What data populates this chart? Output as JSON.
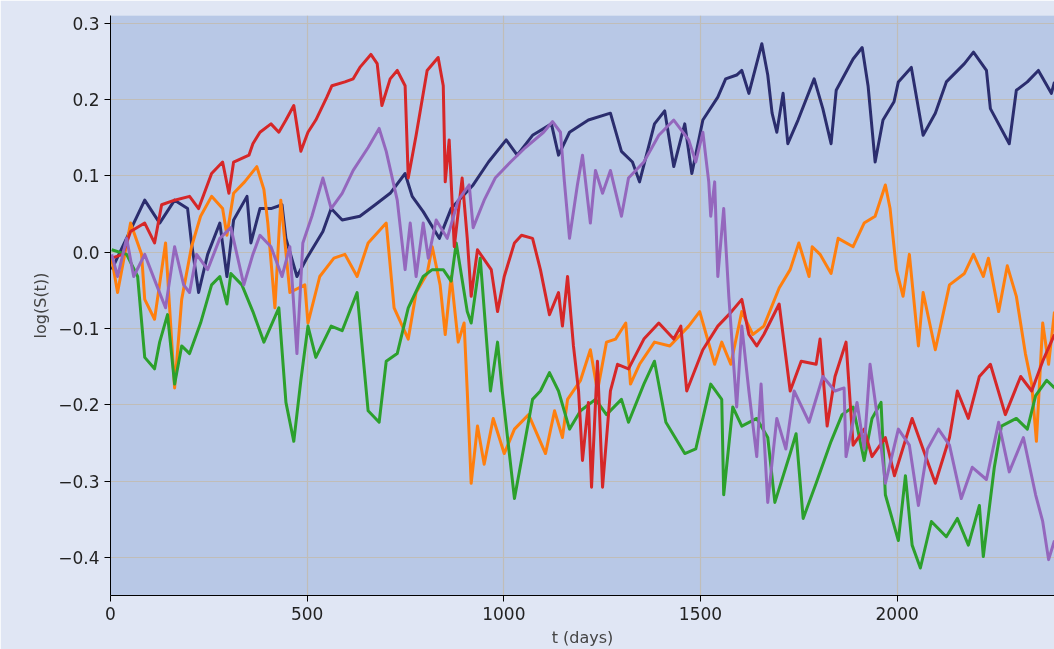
{
  "chart_data": {
    "type": "line",
    "xlabel": "t (days)",
    "ylabel": "log(S(t))",
    "xlim": [
      0,
      2400
    ],
    "ylim": [
      -0.45,
      0.31
    ],
    "xticks": [
      0,
      500,
      1000,
      1500,
      2000
    ],
    "yticks": [
      {
        "value": -0.4,
        "label": "−0.4"
      },
      {
        "value": -0.3,
        "label": "−0.3"
      },
      {
        "value": -0.2,
        "label": "−0.2"
      },
      {
        "value": -0.1,
        "label": "−0.1"
      },
      {
        "value": 0,
        "label": "0.0"
      },
      0.1,
      0.2,
      0.3
    ],
    "grid": true,
    "line_style": "solid",
    "marker": "none",
    "series": [
      {
        "color": "#2b2d6e",
        "x": [
          3,
          87,
          125,
          163,
          196,
          206,
          224,
          247,
          278,
          296,
          313,
          347,
          357,
          380,
          408,
          436,
          446,
          474,
          499,
          540,
          561,
          589,
          634,
          673,
          711,
          749,
          767,
          795,
          836,
          866,
          922,
          961,
          1006,
          1034,
          1073,
          1121,
          1139,
          1167,
          1215,
          1271,
          1299,
          1327,
          1345,
          1383,
          1409,
          1432,
          1460,
          1478,
          1506,
          1544,
          1564,
          1592,
          1605,
          1623,
          1656,
          1671,
          1682,
          1694,
          1710,
          1722,
          1748,
          1789,
          1811,
          1832,
          1845,
          1888,
          1911,
          1926,
          1944,
          1964,
          1992,
          2003,
          2036,
          2066,
          2097,
          2125,
          2171,
          2194,
          2227,
          2237,
          2285,
          2303,
          2331,
          2359,
          2392,
          2400
        ],
        "values": [
          -0.023,
          0.068,
          0.038,
          0.068,
          0.057,
          0.012,
          -0.053,
          -0.003,
          0.038,
          -0.032,
          0.042,
          0.073,
          0.012,
          0.057,
          0.057,
          0.062,
          0.018,
          -0.032,
          -0.008,
          0.027,
          0.057,
          0.042,
          0.047,
          0.062,
          0.077,
          0.103,
          0.073,
          0.053,
          0.018,
          0.057,
          0.088,
          0.118,
          0.147,
          0.127,
          0.153,
          0.168,
          0.127,
          0.157,
          0.173,
          0.182,
          0.132,
          0.118,
          0.092,
          0.168,
          0.185,
          0.112,
          0.168,
          0.103,
          0.173,
          0.203,
          0.227,
          0.232,
          0.238,
          0.208,
          0.273,
          0.232,
          0.182,
          0.157,
          0.208,
          0.142,
          0.173,
          0.227,
          0.188,
          0.142,
          0.212,
          0.253,
          0.268,
          0.218,
          0.118,
          0.173,
          0.197,
          0.223,
          0.242,
          0.153,
          0.182,
          0.223,
          0.247,
          0.262,
          0.238,
          0.188,
          0.142,
          0.212,
          0.223,
          0.238,
          0.208,
          0.223
        ]
      },
      {
        "color": "#ff7f0e",
        "x": [
          3,
          18,
          51,
          79,
          87,
          112,
          140,
          163,
          181,
          206,
          229,
          257,
          285,
          296,
          313,
          341,
          372,
          390,
          400,
          418,
          433,
          456,
          494,
          502,
          532,
          568,
          596,
          627,
          655,
          701,
          721,
          757,
          777,
          805,
          818,
          838,
          851,
          866,
          884,
          899,
          907,
          917,
          933,
          950,
          973,
          1001,
          1027,
          1063,
          1106,
          1129,
          1149,
          1162,
          1195,
          1220,
          1238,
          1261,
          1284,
          1310,
          1322,
          1345,
          1383,
          1422,
          1470,
          1498,
          1536,
          1554,
          1577,
          1605,
          1633,
          1661,
          1700,
          1728,
          1750,
          1776,
          1784,
          1804,
          1832,
          1850,
          1888,
          1916,
          1944,
          1970,
          1982,
          1998,
          2015,
          2031,
          2054,
          2066,
          2097,
          2133,
          2171,
          2194,
          2219,
          2232,
          2258,
          2280,
          2303,
          2326,
          2342,
          2354,
          2370,
          2385,
          2400
        ],
        "values": [
          -0.008,
          -0.053,
          0.038,
          -0.003,
          -0.062,
          -0.088,
          0.012,
          -0.178,
          -0.062,
          0.007,
          0.047,
          0.073,
          0.057,
          0.022,
          0.077,
          0.092,
          0.112,
          0.082,
          0.038,
          -0.073,
          0.068,
          -0.053,
          -0.043,
          -0.093,
          -0.032,
          -0.008,
          -0.003,
          -0.032,
          0.012,
          0.038,
          -0.073,
          -0.114,
          -0.053,
          -0.028,
          0.007,
          -0.043,
          -0.108,
          -0.032,
          -0.118,
          -0.093,
          -0.182,
          -0.303,
          -0.228,
          -0.278,
          -0.218,
          -0.264,
          -0.232,
          -0.213,
          -0.264,
          -0.208,
          -0.243,
          -0.193,
          -0.168,
          -0.128,
          -0.182,
          -0.118,
          -0.114,
          -0.093,
          -0.173,
          -0.147,
          -0.118,
          -0.123,
          -0.097,
          -0.078,
          -0.147,
          -0.118,
          -0.147,
          -0.078,
          -0.108,
          -0.097,
          -0.047,
          -0.023,
          0.012,
          -0.032,
          0.007,
          -0.003,
          -0.028,
          0.018,
          0.007,
          0.038,
          0.047,
          0.088,
          0.057,
          -0.023,
          -0.058,
          -0.003,
          -0.123,
          -0.053,
          -0.128,
          -0.043,
          -0.028,
          -0.003,
          -0.032,
          -0.008,
          -0.078,
          -0.018,
          -0.058,
          -0.133,
          -0.173,
          -0.248,
          -0.093,
          -0.147,
          -0.078
        ]
      },
      {
        "color": "#2ca02c",
        "x": [
          3,
          41,
          69,
          87,
          112,
          125,
          145,
          163,
          181,
          201,
          229,
          257,
          278,
          296,
          306,
          334,
          362,
          390,
          428,
          446,
          466,
          484,
          502,
          522,
          561,
          589,
          627,
          655,
          683,
          701,
          729,
          757,
          795,
          818,
          846,
          866,
          879,
          907,
          917,
          940,
          966,
          984,
          996,
          1027,
          1050,
          1073,
          1093,
          1116,
          1139,
          1167,
          1195,
          1233,
          1261,
          1299,
          1317,
          1356,
          1383,
          1412,
          1460,
          1488,
          1526,
          1554,
          1559,
          1582,
          1605,
          1643,
          1671,
          1689,
          1728,
          1743,
          1761,
          1794,
          1832,
          1860,
          1888,
          1916,
          1936,
          1959,
          1970,
          2003,
          2021,
          2038,
          2059,
          2087,
          2125,
          2153,
          2181,
          2209,
          2219,
          2247,
          2265,
          2303,
          2331,
          2352,
          2380,
          2400
        ],
        "values": [
          0.003,
          -0.003,
          -0.032,
          -0.138,
          -0.153,
          -0.118,
          -0.082,
          -0.173,
          -0.123,
          -0.133,
          -0.093,
          -0.043,
          -0.032,
          -0.068,
          -0.028,
          -0.043,
          -0.078,
          -0.118,
          -0.073,
          -0.197,
          -0.248,
          -0.168,
          -0.097,
          -0.138,
          -0.097,
          -0.103,
          -0.053,
          -0.208,
          -0.223,
          -0.143,
          -0.133,
          -0.073,
          -0.032,
          -0.023,
          -0.023,
          -0.038,
          0.012,
          -0.078,
          -0.093,
          -0.008,
          -0.182,
          -0.118,
          -0.182,
          -0.323,
          -0.258,
          -0.193,
          -0.182,
          -0.158,
          -0.182,
          -0.232,
          -0.208,
          -0.193,
          -0.213,
          -0.193,
          -0.223,
          -0.173,
          -0.143,
          -0.223,
          -0.264,
          -0.258,
          -0.173,
          -0.193,
          -0.318,
          -0.203,
          -0.228,
          -0.218,
          -0.243,
          -0.328,
          -0.264,
          -0.238,
          -0.349,
          -0.303,
          -0.248,
          -0.213,
          -0.203,
          -0.273,
          -0.218,
          -0.197,
          -0.318,
          -0.378,
          -0.293,
          -0.384,
          -0.414,
          -0.353,
          -0.373,
          -0.349,
          -0.384,
          -0.332,
          -0.399,
          -0.282,
          -0.228,
          -0.218,
          -0.232,
          -0.188,
          -0.168,
          -0.178
        ]
      },
      {
        "color": "#d62728",
        "x": [
          3,
          31,
          51,
          87,
          112,
          130,
          163,
          201,
          224,
          257,
          285,
          301,
          313,
          352,
          362,
          380,
          408,
          428,
          446,
          466,
          484,
          502,
          522,
          550,
          563,
          596,
          617,
          634,
          662,
          678,
          690,
          711,
          729,
          749,
          757,
          777,
          805,
          833,
          846,
          851,
          861,
          874,
          894,
          907,
          917,
          933,
          968,
          984,
          1001,
          1027,
          1045,
          1073,
          1093,
          1116,
          1139,
          1149,
          1162,
          1177,
          1190,
          1200,
          1215,
          1223,
          1238,
          1251,
          1271,
          1289,
          1317,
          1356,
          1394,
          1432,
          1450,
          1465,
          1506,
          1544,
          1572,
          1605,
          1623,
          1643,
          1661,
          1700,
          1728,
          1756,
          1794,
          1804,
          1822,
          1842,
          1870,
          1888,
          1916,
          1936,
          1970,
          1993,
          2038,
          2097,
          2133,
          2153,
          2181,
          2209,
          2237,
          2275,
          2314,
          2342,
          2370,
          2400
        ],
        "values": [
          -0.008,
          -0.003,
          0.027,
          0.038,
          0.012,
          0.062,
          0.068,
          0.073,
          0.057,
          0.103,
          0.118,
          0.077,
          0.118,
          0.127,
          0.142,
          0.157,
          0.168,
          0.157,
          0.173,
          0.192,
          0.132,
          0.157,
          0.173,
          0.203,
          0.218,
          0.223,
          0.227,
          0.242,
          0.259,
          0.247,
          0.192,
          0.227,
          0.238,
          0.218,
          0.097,
          0.153,
          0.238,
          0.255,
          0.218,
          0.092,
          0.147,
          0.007,
          0.097,
          0.018,
          -0.058,
          0.003,
          -0.023,
          -0.078,
          -0.032,
          0.012,
          0.022,
          0.018,
          -0.023,
          -0.082,
          -0.053,
          -0.097,
          -0.032,
          -0.123,
          -0.182,
          -0.273,
          -0.197,
          -0.308,
          -0.143,
          -0.308,
          -0.182,
          -0.147,
          -0.153,
          -0.114,
          -0.093,
          -0.114,
          -0.097,
          -0.182,
          -0.128,
          -0.097,
          -0.082,
          -0.062,
          -0.108,
          -0.123,
          -0.108,
          -0.068,
          -0.182,
          -0.143,
          -0.147,
          -0.114,
          -0.228,
          -0.163,
          -0.118,
          -0.253,
          -0.232,
          -0.268,
          -0.243,
          -0.293,
          -0.218,
          -0.303,
          -0.243,
          -0.182,
          -0.218,
          -0.163,
          -0.147,
          -0.213,
          -0.163,
          -0.182,
          -0.143,
          -0.108
        ]
      },
      {
        "color": "#9467bd",
        "x": [
          3,
          18,
          41,
          59,
          87,
          117,
          140,
          163,
          186,
          201,
          219,
          247,
          278,
          306,
          339,
          362,
          380,
          408,
          436,
          456,
          474,
          489,
          512,
          540,
          561,
          589,
          617,
          655,
          683,
          701,
          729,
          749,
          762,
          777,
          795,
          808,
          828,
          856,
          884,
          912,
          922,
          950,
          978,
          1017,
          1055,
          1101,
          1124,
          1144,
          1154,
          1167,
          1187,
          1200,
          1220,
          1233,
          1251,
          1271,
          1299,
          1317,
          1356,
          1394,
          1432,
          1470,
          1488,
          1506,
          1521,
          1526,
          1536,
          1544,
          1559,
          1572,
          1592,
          1605,
          1623,
          1643,
          1654,
          1671,
          1694,
          1717,
          1738,
          1776,
          1811,
          1842,
          1865,
          1870,
          1898,
          1916,
          1931,
          1954,
          1970,
          2003,
          2031,
          2054,
          2077,
          2105,
          2133,
          2163,
          2191,
          2227,
          2258,
          2285,
          2321,
          2352,
          2370,
          2385,
          2400
        ],
        "values": [
          -0.003,
          -0.032,
          0.018,
          -0.032,
          -0.003,
          -0.043,
          -0.073,
          0.007,
          -0.043,
          -0.053,
          -0.003,
          -0.023,
          0.018,
          0.032,
          -0.043,
          -0.003,
          0.022,
          0.007,
          -0.032,
          0.007,
          -0.133,
          0.012,
          0.047,
          0.097,
          0.057,
          0.077,
          0.107,
          0.137,
          0.162,
          0.132,
          0.068,
          -0.023,
          0.038,
          -0.032,
          0.038,
          -0.008,
          0.042,
          0.018,
          0.068,
          0.088,
          0.032,
          0.068,
          0.097,
          0.118,
          0.137,
          0.157,
          0.171,
          0.157,
          0.092,
          0.018,
          0.088,
          0.127,
          0.038,
          0.107,
          0.077,
          0.107,
          0.047,
          0.097,
          0.118,
          0.153,
          0.173,
          0.147,
          0.118,
          0.157,
          0.092,
          0.047,
          0.092,
          -0.032,
          0.057,
          -0.058,
          -0.203,
          -0.097,
          -0.182,
          -0.268,
          -0.173,
          -0.328,
          -0.218,
          -0.258,
          -0.182,
          -0.223,
          -0.163,
          -0.182,
          -0.178,
          -0.268,
          -0.197,
          -0.258,
          -0.147,
          -0.232,
          -0.303,
          -0.232,
          -0.253,
          -0.332,
          -0.258,
          -0.232,
          -0.253,
          -0.323,
          -0.282,
          -0.298,
          -0.223,
          -0.288,
          -0.243,
          -0.318,
          -0.353,
          -0.403,
          -0.378
        ]
      }
    ]
  }
}
